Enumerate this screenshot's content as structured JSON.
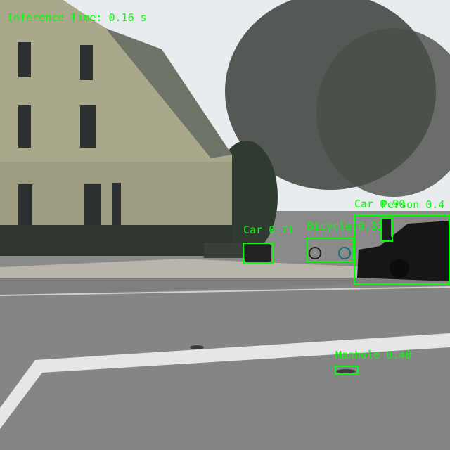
{
  "overlay": {
    "timing_label": "Inference Time: 0.16 s",
    "accent": "#00ff00"
  },
  "detections": [
    {
      "class": "Car",
      "score": "0.71"
    },
    {
      "class": "Bicycle",
      "score": "0.32"
    },
    {
      "class": "Car",
      "score": "0.90"
    },
    {
      "class": "Person",
      "score": "0.4"
    },
    {
      "class": "Manhole",
      "score": "0.48"
    }
  ]
}
